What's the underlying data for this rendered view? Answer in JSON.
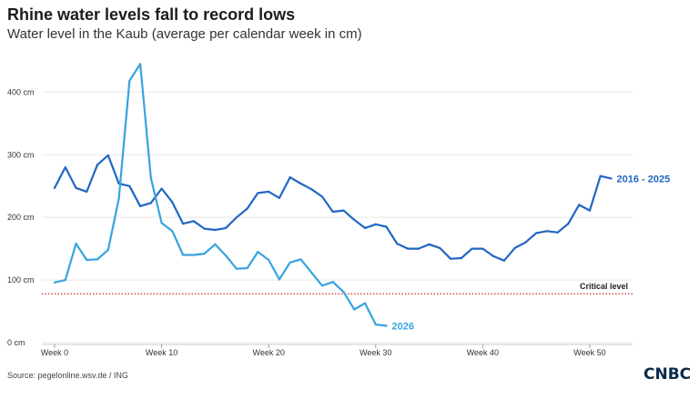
{
  "header": {
    "title": "Rhine water levels fall to record lows",
    "subtitle": "Water level in the Kaub (average per calendar week in cm)"
  },
  "footer": {
    "source": "Source: pegelonline.wsv.de / ING",
    "logo": "CNBC"
  },
  "colors": {
    "series_2016_2025": "#2166c4",
    "series_2026": "#37a3e0",
    "critical": "#d62728",
    "grid": "#e8e8e8"
  },
  "chart_data": {
    "type": "line",
    "title": "Rhine water levels fall to record lows",
    "subtitle": "Water level in the Kaub (average per calendar week in cm)",
    "xlabel": "",
    "ylabel": "",
    "xlim": [
      0,
      54
    ],
    "ylim": [
      0,
      460
    ],
    "grid": true,
    "x_ticks": [
      {
        "value": 0,
        "label": "Week 0"
      },
      {
        "value": 10,
        "label": "Week 10"
      },
      {
        "value": 20,
        "label": "Week 20"
      },
      {
        "value": 30,
        "label": "Week 30"
      },
      {
        "value": 40,
        "label": "Week 40"
      },
      {
        "value": 50,
        "label": "Week 50"
      }
    ],
    "y_ticks": [
      {
        "value": 0,
        "label": "0 cm"
      },
      {
        "value": 100,
        "label": "100 cm"
      },
      {
        "value": 200,
        "label": "200 cm"
      },
      {
        "value": 300,
        "label": "300 cm"
      },
      {
        "value": 400,
        "label": "400 cm"
      }
    ],
    "reference_line": {
      "value": 78,
      "label": "Critical level"
    },
    "series": [
      {
        "name": "2016 - 2025",
        "x": [
          0,
          1,
          2,
          3,
          4,
          5,
          6,
          7,
          8,
          9,
          10,
          11,
          12,
          13,
          14,
          15,
          16,
          17,
          18,
          19,
          20,
          21,
          22,
          23,
          24,
          25,
          26,
          27,
          28,
          29,
          30,
          31,
          32,
          33,
          34,
          35,
          36,
          37,
          38,
          39,
          40,
          41,
          42,
          43,
          44,
          45,
          46,
          47,
          48,
          49,
          50,
          51,
          52
        ],
        "values": [
          247,
          280,
          247,
          241,
          284,
          299,
          254,
          250,
          218,
          223,
          246,
          224,
          190,
          194,
          182,
          180,
          183,
          200,
          214,
          239,
          241,
          231,
          264,
          254,
          245,
          233,
          209,
          211,
          196,
          183,
          189,
          185,
          158,
          150,
          150,
          157,
          151,
          134,
          135,
          150,
          150,
          138,
          131,
          151,
          160,
          175,
          178,
          176,
          190,
          220,
          211,
          266,
          262
        ]
      },
      {
        "name": "2026",
        "x": [
          0,
          1,
          2,
          3,
          4,
          5,
          6,
          7,
          8,
          9,
          10,
          11,
          12,
          13,
          14,
          15,
          16,
          17,
          18,
          19,
          20,
          21,
          22,
          23,
          24,
          25,
          26,
          27,
          28,
          29,
          30,
          31,
          32
        ],
        "values": [
          96,
          100,
          158,
          132,
          133,
          148,
          230,
          418,
          445,
          263,
          191,
          178,
          140,
          140,
          142,
          157,
          139,
          118,
          119,
          145,
          132,
          101,
          128,
          133,
          112,
          91,
          97,
          81,
          53,
          63,
          29,
          27,
          null
        ]
      }
    ]
  }
}
